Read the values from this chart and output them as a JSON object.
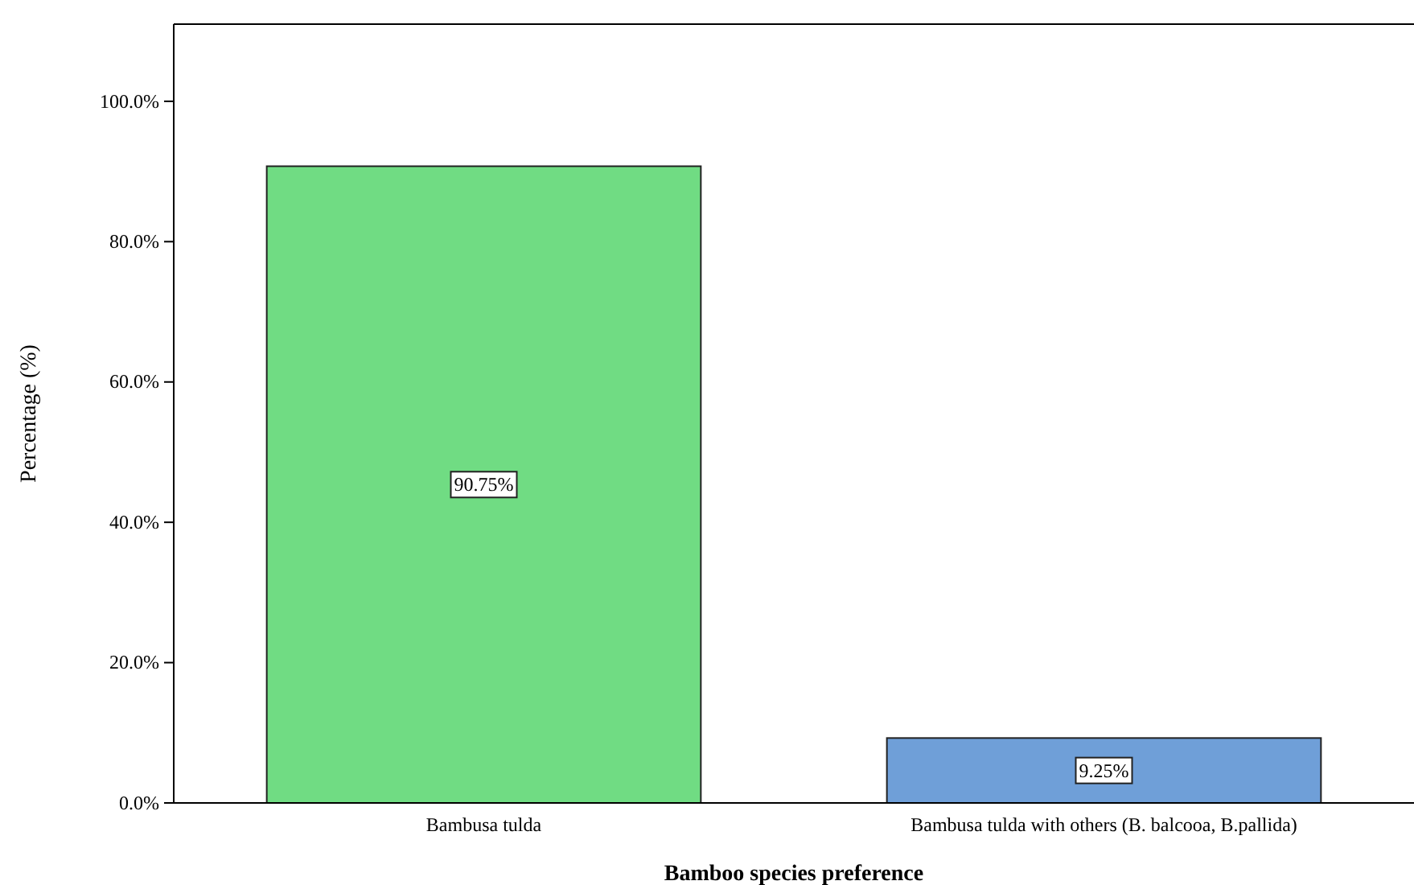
{
  "chart_data": {
    "type": "bar",
    "xlabel": "Bamboo species preference",
    "ylabel": "Percentage (%)",
    "categories": [
      "Bambusa tulda",
      "Bambusa tulda with others (B. balcooa, B.pallida)"
    ],
    "values": [
      90.75,
      9.25
    ],
    "colors": [
      "#70dc83",
      "#6f9fd8"
    ],
    "value_labels": [
      "90.75%",
      "9.25%"
    ],
    "ylim": [
      0,
      111
    ],
    "yticks": [
      {
        "value": 0,
        "label": "0.0%"
      },
      {
        "value": 20,
        "label": "20.0%"
      },
      {
        "value": 40,
        "label": "40.0%"
      },
      {
        "value": 60,
        "label": "60.0%"
      },
      {
        "value": 80,
        "label": "80.0%"
      },
      {
        "value": 100,
        "label": "100.0%"
      }
    ],
    "grid": false
  }
}
